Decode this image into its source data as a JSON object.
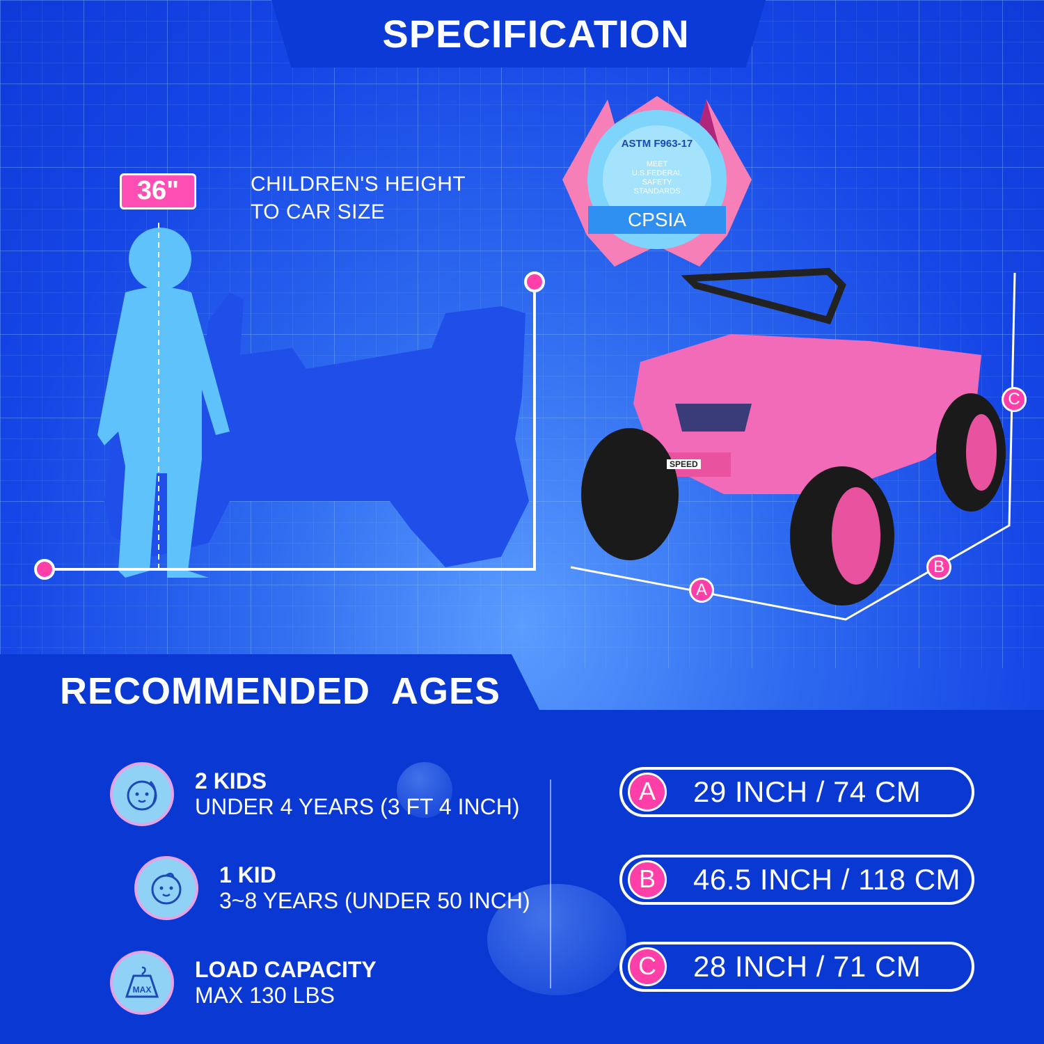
{
  "header": {
    "title": "SPECIFICATION"
  },
  "height_section": {
    "badge": "36\"",
    "label_line1": "CHILDREN'S HEIGHT",
    "label_line2": "TO CAR SIZE"
  },
  "certification_badge": {
    "top_arc": "ASTM F963-17",
    "lines": [
      "MEET",
      "U.S.FEDERAL",
      "SAFETY",
      "STANDARDS"
    ],
    "ribbon": "CPSIA"
  },
  "car": {
    "plate": "SPEED",
    "color": "#f26bb8"
  },
  "dimension_markers": [
    "A",
    "B",
    "C"
  ],
  "recommended": {
    "title": "RECOMMENDED  AGES",
    "items": [
      {
        "icon": "kids-face-icon",
        "title": "2 KIDS",
        "subtitle": "UNDER 4 YEARS (3 FT 4 INCH)"
      },
      {
        "icon": "kid-face-icon",
        "title": "1 KID",
        "subtitle": "3~8 YEARS (UNDER 50 INCH)"
      },
      {
        "icon": "weight-max-icon",
        "title": "LOAD CAPACITY",
        "subtitle": "MAX 130 LBS",
        "icon_text": "MAX"
      }
    ]
  },
  "dimensions": [
    {
      "letter": "A",
      "value": "29 INCH / 74 CM"
    },
    {
      "letter": "B",
      "value": "46.5 INCH / 118 CM"
    },
    {
      "letter": "C",
      "value": "28 INCH / 71 CM"
    }
  ],
  "colors": {
    "accent": "#ff3fa8",
    "background": "#1646e6",
    "panel": "#0a38d2"
  }
}
